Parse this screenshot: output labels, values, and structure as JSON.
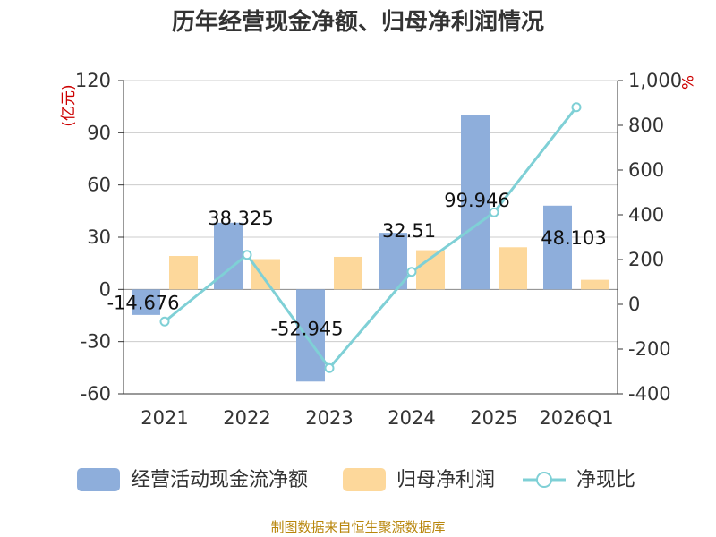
{
  "title": "历年经营现金净额、归母净利润情况",
  "source": "制图数据来自恒生聚源数据库",
  "chart_data": {
    "type": "bar",
    "categories": [
      "2021",
      "2022",
      "2023",
      "2024",
      "2025",
      "2026Q1"
    ],
    "left_axis": {
      "unit": "(亿元)",
      "ylim": [
        -60,
        120
      ],
      "ticks": [
        -60,
        -30,
        0,
        30,
        60,
        90,
        120
      ]
    },
    "right_axis": {
      "unit": "%",
      "ylim": [
        -400,
        1000
      ],
      "ticks": [
        "-400",
        "-200",
        "0",
        "200",
        "400",
        "600",
        "800",
        "1,000"
      ]
    },
    "series": [
      {
        "name": "经营活动现金流净额",
        "type": "bar",
        "axis": "left",
        "color": "#8eaedb",
        "values": [
          -14.676,
          38.325,
          -52.945,
          32.51,
          99.946,
          48.103
        ],
        "labels": [
          "-14.676",
          "38.325",
          "-52.945",
          "32.51",
          "99.946",
          "48.103"
        ]
      },
      {
        "name": "归母净利润",
        "type": "bar",
        "axis": "left",
        "color": "#fdd89b",
        "values": [
          19.2,
          17.4,
          18.7,
          22.5,
          24.2,
          5.5
        ]
      },
      {
        "name": "净现比",
        "type": "line",
        "axis": "right",
        "color": "#7fd0d6",
        "values": [
          -77,
          221,
          -285,
          145,
          411,
          881
        ]
      }
    ],
    "grid": true,
    "legend_position": "bottom"
  }
}
